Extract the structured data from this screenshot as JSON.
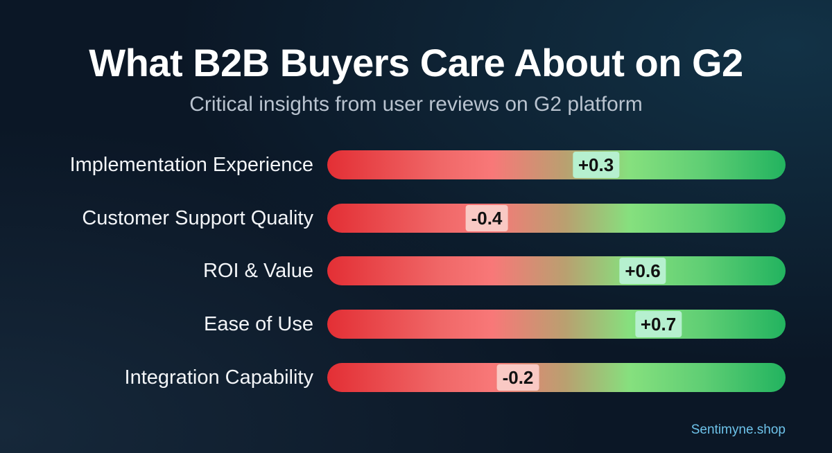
{
  "chart_data": {
    "type": "bar",
    "title": "What B2B Buyers Care About on G2",
    "subtitle": "Critical insights from user reviews on G2 platform",
    "categories": [
      "Implementation Experience",
      "Customer Support Quality",
      "ROI & Value",
      "Ease of Use",
      "Integration Capability"
    ],
    "values": [
      0.3,
      -0.4,
      0.6,
      0.7,
      -0.2
    ],
    "value_labels": [
      "+0.3",
      "-0.4",
      "+0.6",
      "+0.7",
      "-0.2"
    ],
    "xlim": [
      -1,
      1
    ],
    "grid": false,
    "colors": {
      "negative": "#e32f35",
      "positive": "#22b35f",
      "positive_chip": "#b6f0cf",
      "negative_chip": "#f9c9c4"
    }
  },
  "footer": "Sentimyne.shop"
}
